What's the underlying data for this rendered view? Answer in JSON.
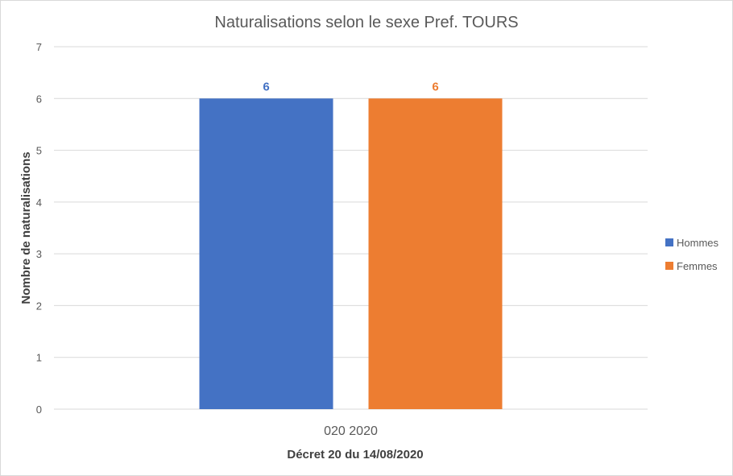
{
  "chart_data": {
    "type": "bar",
    "title": "Naturalisations selon le sexe Pref. TOURS",
    "categories": [
      "020 2020"
    ],
    "xlabel": "Décret 20 du 14/08/2020",
    "ylabel": "Nombre de naturalisations",
    "ylim": [
      0,
      7
    ],
    "yticks": [
      "0",
      "1",
      "2",
      "3",
      "4",
      "5",
      "6",
      "7"
    ],
    "grid": true,
    "legend_position": "right",
    "series": [
      {
        "name": "Hommes",
        "values": [
          6
        ],
        "color": "#4472C4"
      },
      {
        "name": "Femmes",
        "values": [
          6
        ],
        "color": "#ED7D31"
      }
    ]
  },
  "colors": {
    "gridline": "#d9d9d9",
    "text": "#595959"
  }
}
